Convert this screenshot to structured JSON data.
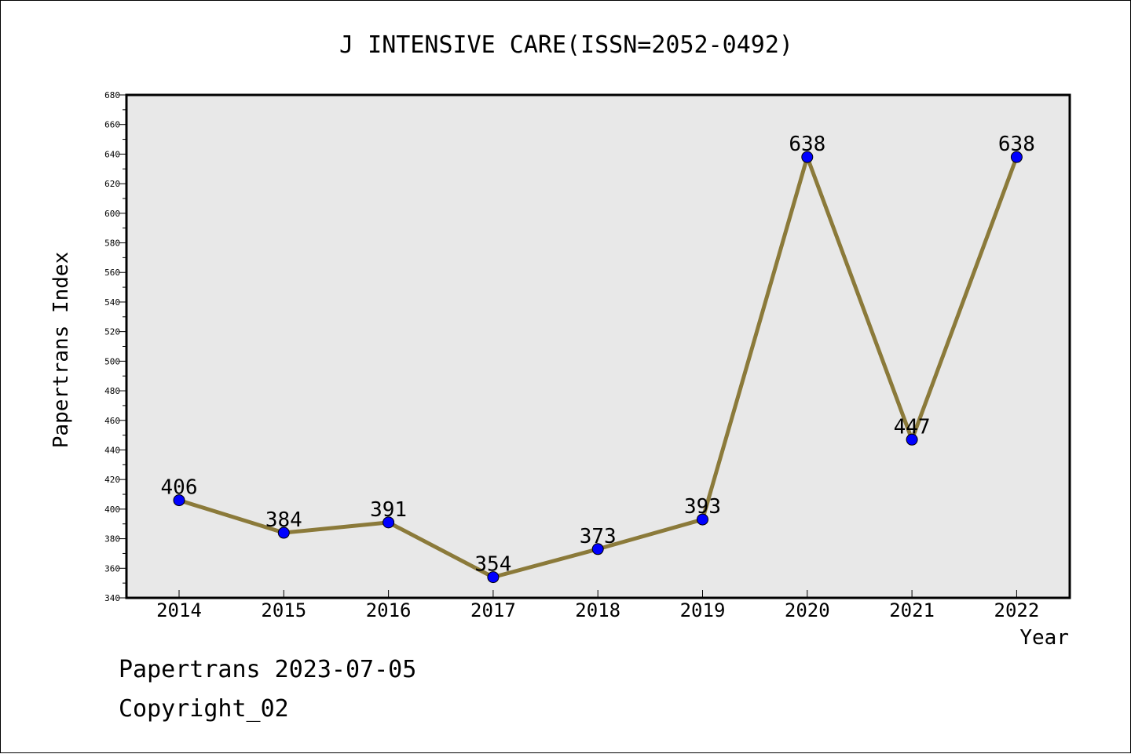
{
  "chart_data": {
    "type": "line",
    "title": "J INTENSIVE CARE(ISSN=2052-0492)",
    "xlabel": "Year",
    "ylabel": "Papertrans Index",
    "categories": [
      "2014",
      "2015",
      "2016",
      "2017",
      "2018",
      "2019",
      "2020",
      "2021",
      "2022"
    ],
    "series": [
      {
        "values": [
          406,
          384,
          391,
          354,
          373,
          393,
          638,
          447,
          638
        ]
      }
    ],
    "ylim": [
      340,
      680
    ],
    "yticks": [
      340,
      360,
      380,
      400,
      420,
      440,
      460,
      480,
      500,
      520,
      540,
      560,
      580,
      600,
      620,
      640,
      660,
      680
    ],
    "grid": false,
    "legend": "none",
    "colors": {
      "line": "#8b7a3a",
      "marker": "#0000ff",
      "plot_background": "#e8e8e8",
      "axis": "#000000"
    }
  },
  "footer": {
    "date_line": "Papertrans 2023-07-05",
    "copyright": "Copyright_02"
  }
}
